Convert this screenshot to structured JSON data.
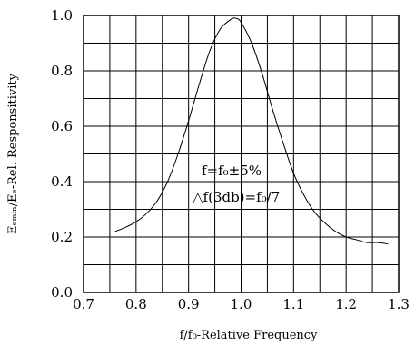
{
  "chart_data": {
    "type": "line",
    "title": "",
    "xlabel": "f/f₀-Relative Frequency",
    "ylabel": "Eₑₘᵢₙ/Eₑ-Rel. Responsitivity",
    "xlim": [
      0.7,
      1.3
    ],
    "ylim": [
      0.0,
      1.0
    ],
    "x_ticks": [
      "0.7",
      "0.8",
      "0.9",
      "1.0",
      "1.1",
      "1.2",
      "1.3"
    ],
    "y_ticks": [
      "0.0",
      "0.2",
      "0.4",
      "0.6",
      "0.8",
      "1.0"
    ],
    "grid": true,
    "annotation": [
      "f=f₀±5%",
      "△f(3db)=f₀/7"
    ],
    "series": [
      {
        "x": [
          0.76,
          0.78,
          0.8,
          0.82,
          0.84,
          0.86,
          0.88,
          0.9,
          0.92,
          0.94,
          0.96,
          0.98,
          0.99,
          1.0,
          1.02,
          1.04,
          1.06,
          1.08,
          1.1,
          1.12,
          1.14,
          1.16,
          1.18,
          1.2,
          1.22,
          1.24,
          1.26,
          1.28
        ],
        "y": [
          0.22,
          0.235,
          0.255,
          0.285,
          0.33,
          0.4,
          0.5,
          0.62,
          0.75,
          0.87,
          0.95,
          0.985,
          0.99,
          0.975,
          0.9,
          0.79,
          0.66,
          0.54,
          0.43,
          0.35,
          0.29,
          0.25,
          0.22,
          0.2,
          0.19,
          0.18,
          0.18,
          0.175
        ]
      }
    ]
  }
}
